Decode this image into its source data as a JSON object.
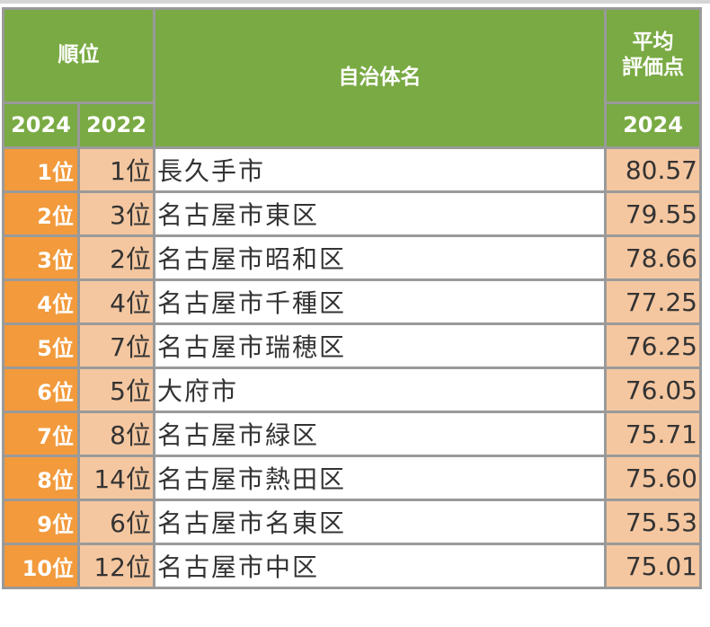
{
  "header": {
    "rank_label": "順位",
    "name_label": "自治体名",
    "score_label_line1": "平均",
    "score_label_line2": "評価点",
    "year_current": "2024",
    "year_previous": "2022",
    "score_year": "2024"
  },
  "rows": [
    {
      "rank": "1位",
      "prev_rank": "1位",
      "name": "長久手市",
      "score": "80.57"
    },
    {
      "rank": "2位",
      "prev_rank": "3位",
      "name": "名古屋市東区",
      "score": "79.55"
    },
    {
      "rank": "3位",
      "prev_rank": "2位",
      "name": "名古屋市昭和区",
      "score": "78.66"
    },
    {
      "rank": "4位",
      "prev_rank": "4位",
      "name": "名古屋市千種区",
      "score": "77.25"
    },
    {
      "rank": "5位",
      "prev_rank": "7位",
      "name": "名古屋市瑞穂区",
      "score": "76.25"
    },
    {
      "rank": "6位",
      "prev_rank": "5位",
      "name": "大府市",
      "score": "76.05"
    },
    {
      "rank": "7位",
      "prev_rank": "8位",
      "name": "名古屋市緑区",
      "score": "75.71"
    },
    {
      "rank": "8位",
      "prev_rank": "14位",
      "name": "名古屋市熱田区",
      "score": "75.60"
    },
    {
      "rank": "9位",
      "prev_rank": "6位",
      "name": "名古屋市名東区",
      "score": "75.53"
    },
    {
      "rank": "10位",
      "prev_rank": "12位",
      "name": "名古屋市中区",
      "score": "75.01"
    }
  ],
  "colors": {
    "header_green": "#7aaa44",
    "rank_orange": "#f29a3c",
    "light_peach": "#f5c7a0",
    "border_gray": "#9a9a9a"
  }
}
